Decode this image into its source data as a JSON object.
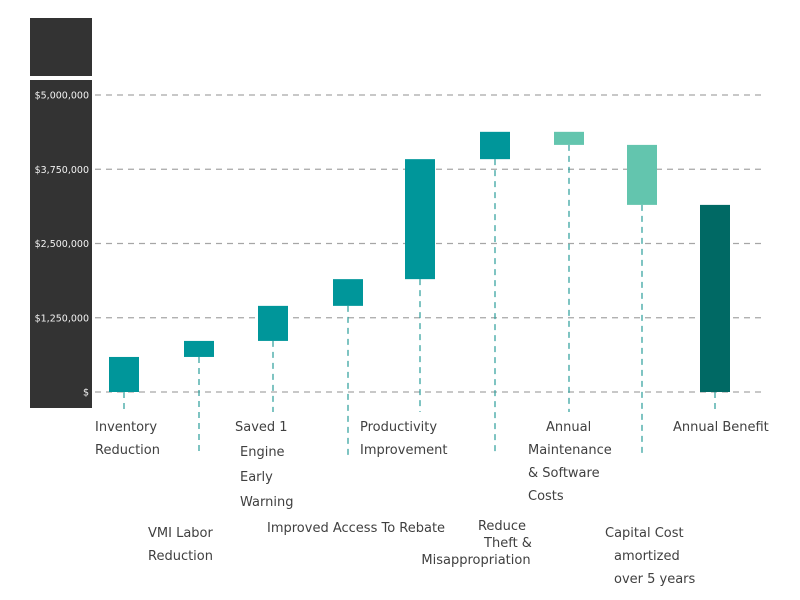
{
  "chart_data": {
    "type": "bar",
    "subtype": "waterfall",
    "title": "",
    "xlabel": "",
    "ylabel": "",
    "ylim": [
      0,
      5000000
    ],
    "grid": true,
    "legend": "none",
    "y_ticks": [
      {
        "value": 0,
        "label": "$"
      },
      {
        "value": 1250000,
        "label": "$1,250,000"
      },
      {
        "value": 2500000,
        "label": "$2,500,000"
      },
      {
        "value": 3750000,
        "label": "$3,750,000"
      },
      {
        "value": 5000000,
        "label": "$5,000,000"
      }
    ],
    "categories": [
      "Inventory Reduction",
      "VMI Labor Reduction",
      "Saved 1 Engine Early Warning",
      "Improved Access To Rebate",
      "Productivity Improvement",
      "Reduce Theft & Misappropriation",
      "Annual Maintenance & Software Costs",
      "Capital Cost amortized over 5 years",
      "Annual Benefit"
    ],
    "label_lines": [
      [
        "Inventory",
        "Reduction"
      ],
      [
        "VMI Labor",
        "Reduction"
      ],
      [
        "Saved 1",
        "Engine",
        "Early",
        "Warning"
      ],
      [
        "Improved Access To Rebate"
      ],
      [
        "Productivity",
        "Improvement"
      ],
      [
        "Reduce",
        "Theft  &",
        "Misappropriation"
      ],
      [
        "Annual",
        "Maintenance",
        "& Software",
        "Costs"
      ],
      [
        "Capital Cost",
        "amortized",
        "over 5 years"
      ],
      [
        "Annual  Benefit"
      ]
    ],
    "label_row": [
      "upper",
      "lower",
      "upper",
      "lower",
      "upper",
      "lower",
      "upper",
      "lower",
      "upper"
    ],
    "values": [
      590000,
      270000,
      590000,
      450000,
      2020000,
      460000,
      -220000,
      -1010000,
      3150000
    ],
    "bar_kind": [
      "increase",
      "increase",
      "increase",
      "increase",
      "increase",
      "increase",
      "decrease",
      "decrease",
      "total"
    ],
    "colors": {
      "increase": "#00969a",
      "decrease": "#63c5ae",
      "total": "#006964",
      "axis_panel": "#333333",
      "grid": "#a6a6a6",
      "connector": "#2a9d9a",
      "label_text": "#404040",
      "tick_text": "#f2f2f2"
    }
  }
}
